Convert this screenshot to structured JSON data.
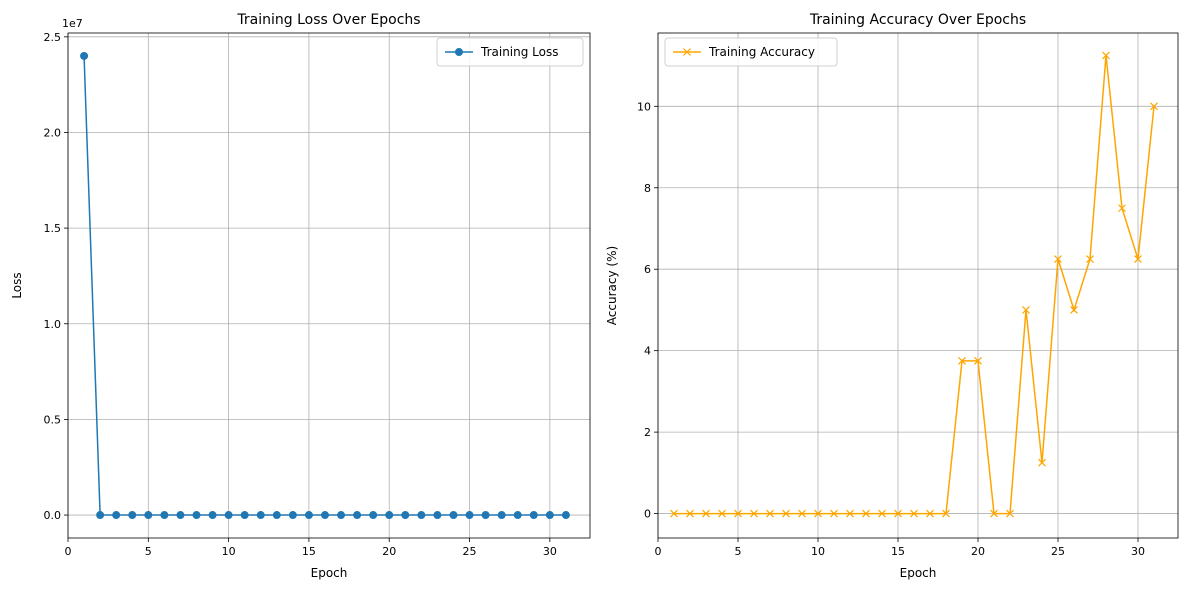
{
  "chart_data": [
    {
      "type": "line",
      "title": "Training Loss Over Epochs",
      "xlabel": "Epoch",
      "ylabel": "Loss",
      "y_multiplier_label": "1e7",
      "xlim": [
        0,
        32.5
      ],
      "ylim": [
        -1200000,
        25200000
      ],
      "xticks": [
        0,
        5,
        10,
        15,
        20,
        25,
        30
      ],
      "yticks": [
        0,
        5000000,
        10000000,
        15000000,
        20000000,
        25000000
      ],
      "ytick_labels": [
        "0.0",
        "0.5",
        "1.0",
        "1.5",
        "2.0",
        "2.5"
      ],
      "grid": true,
      "legend_position": "top-right",
      "color": "#1f77b4",
      "marker": "circle",
      "series": [
        {
          "name": "Training Loss",
          "x": [
            1,
            2,
            3,
            4,
            5,
            6,
            7,
            8,
            9,
            10,
            11,
            12,
            13,
            14,
            15,
            16,
            17,
            18,
            19,
            20,
            21,
            22,
            23,
            24,
            25,
            26,
            27,
            28,
            29,
            30,
            31
          ],
          "values": [
            24000000,
            0,
            0,
            0,
            0,
            0,
            0,
            0,
            0,
            0,
            0,
            0,
            0,
            0,
            0,
            0,
            0,
            0,
            0,
            0,
            0,
            0,
            0,
            0,
            0,
            0,
            0,
            0,
            0,
            0,
            0
          ]
        }
      ]
    },
    {
      "type": "line",
      "title": "Training Accuracy Over Epochs",
      "xlabel": "Epoch",
      "ylabel": "Accuracy (%)",
      "xlim": [
        0,
        32.5
      ],
      "ylim": [
        -0.6,
        11.8
      ],
      "xticks": [
        0,
        5,
        10,
        15,
        20,
        25,
        30
      ],
      "yticks": [
        0,
        2,
        4,
        6,
        8,
        10
      ],
      "ytick_labels": [
        "0",
        "2",
        "4",
        "6",
        "8",
        "10"
      ],
      "grid": true,
      "legend_position": "top-left",
      "color": "#ffa500",
      "marker": "x",
      "series": [
        {
          "name": "Training Accuracy",
          "x": [
            1,
            2,
            3,
            4,
            5,
            6,
            7,
            8,
            9,
            10,
            11,
            12,
            13,
            14,
            15,
            16,
            17,
            18,
            19,
            20,
            21,
            22,
            23,
            24,
            25,
            26,
            27,
            28,
            29,
            30,
            31
          ],
          "values": [
            0,
            0,
            0,
            0,
            0,
            0,
            0,
            0,
            0,
            0,
            0,
            0,
            0,
            0,
            0,
            0,
            0,
            0,
            3.75,
            3.75,
            0,
            0,
            5,
            1.25,
            6.25,
            5,
            6.25,
            11.25,
            7.5,
            6.25,
            10
          ]
        }
      ]
    }
  ]
}
